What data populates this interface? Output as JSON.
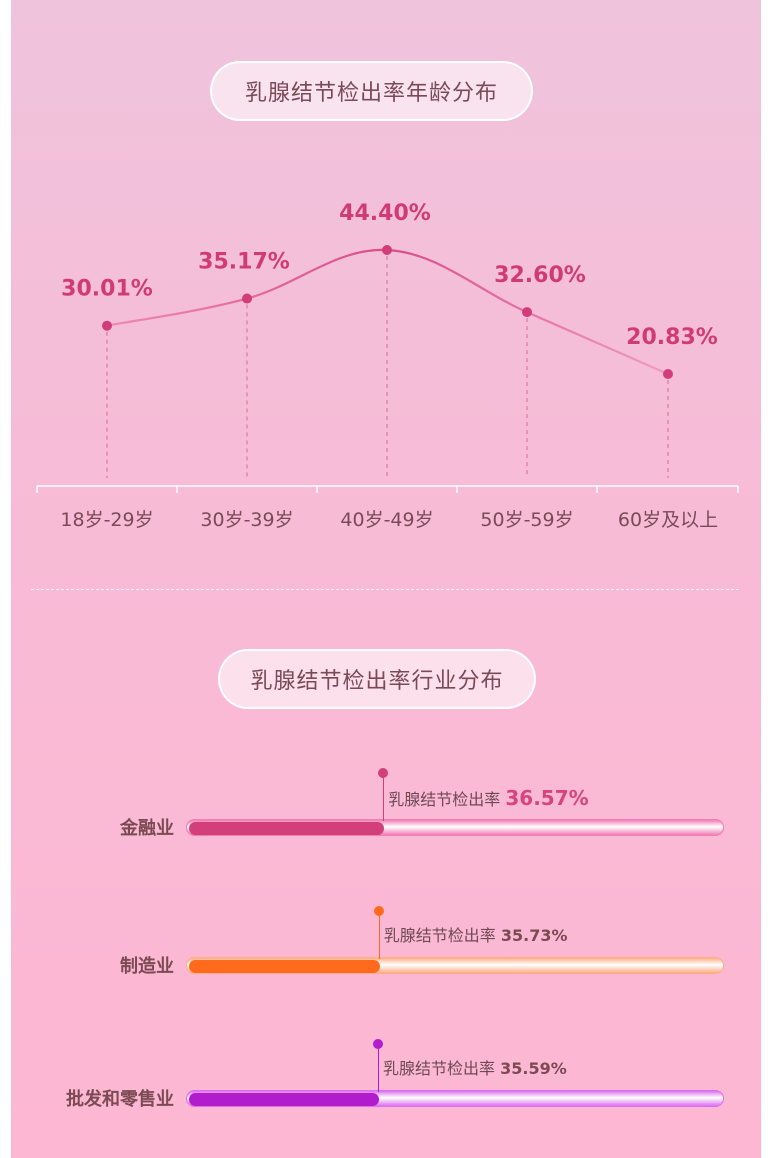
{
  "chart_data": [
    {
      "type": "line",
      "title": "乳腺结节检出率年龄分布",
      "categories": [
        "18岁-29岁",
        "30岁-39岁",
        "40岁-49岁",
        "50岁-59岁",
        "60岁及以上"
      ],
      "values": [
        30.01,
        35.17,
        44.4,
        32.6,
        20.83
      ],
      "value_labels": [
        "30.01%",
        "35.17%",
        "44.40%",
        "32.60%",
        "20.83%"
      ],
      "unit": "%",
      "grid": false,
      "line_color": "#e0669b",
      "point_color": "#d23c7a",
      "label_color": "#d03b77"
    },
    {
      "type": "bar",
      "title": "乳腺结节检出率行业分布",
      "orientation": "horizontal",
      "categories": [
        "金融业",
        "制造业",
        "批发和零售业"
      ],
      "values": [
        36.57,
        35.73,
        35.59
      ],
      "value_labels": [
        "36.57%",
        "35.73%",
        "35.59%"
      ],
      "annotation": "乳腺结节检出率",
      "unit": "%",
      "xlim": [
        0,
        100
      ],
      "colors": [
        "#d23f7b",
        "#ff6a1c",
        "#b21ccc"
      ],
      "track_colors": [
        "#f27cb3",
        "#ffad85",
        "#dc6ff0"
      ]
    }
  ]
}
